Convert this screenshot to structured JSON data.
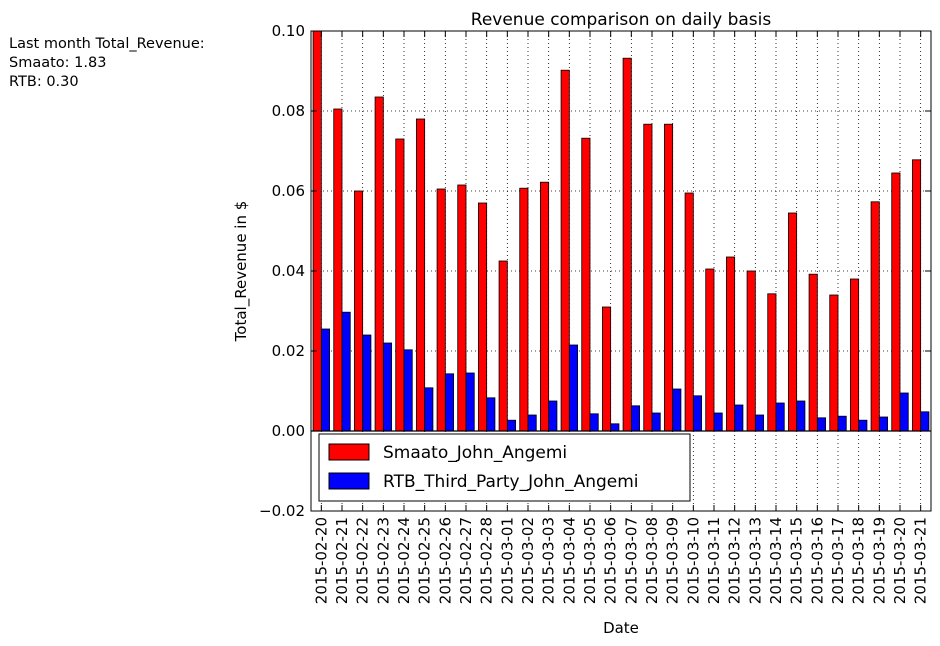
{
  "summary": {
    "heading": "Last month Total_Revenue:",
    "smaato_line": "Smaato: 1.83",
    "rtb_line": "RTB: 0.30"
  },
  "chart_data": {
    "type": "bar",
    "title": "Revenue comparison on daily basis",
    "xlabel": "Date",
    "ylabel": "Total_Revenue in $",
    "ylim": [
      -0.02,
      0.1
    ],
    "yticks": [
      -0.02,
      0.0,
      0.02,
      0.04,
      0.06,
      0.08,
      0.1
    ],
    "ytick_labels": [
      "−0.02",
      "0.00",
      "0.02",
      "0.04",
      "0.06",
      "0.08",
      "0.10"
    ],
    "grid": true,
    "legend_position": "lower-left",
    "categories": [
      "2015-02-20",
      "2015-02-21",
      "2015-02-22",
      "2015-02-23",
      "2015-02-24",
      "2015-02-25",
      "2015-02-26",
      "2015-02-27",
      "2015-02-28",
      "2015-03-01",
      "2015-03-02",
      "2015-03-03",
      "2015-03-04",
      "2015-03-05",
      "2015-03-06",
      "2015-03-07",
      "2015-03-08",
      "2015-03-09",
      "2015-03-10",
      "2015-03-11",
      "2015-03-12",
      "2015-03-13",
      "2015-03-14",
      "2015-03-15",
      "2015-03-16",
      "2015-03-17",
      "2015-03-18",
      "2015-03-19",
      "2015-03-20",
      "2015-03-21"
    ],
    "series": [
      {
        "name": "Smaato_John_Angemi",
        "color": "#ff0000",
        "values": [
          0.1,
          0.0805,
          0.06,
          0.0835,
          0.073,
          0.078,
          0.0605,
          0.0615,
          0.057,
          0.0425,
          0.0607,
          0.0622,
          0.0902,
          0.0732,
          0.031,
          0.0932,
          0.0767,
          0.0767,
          0.0595,
          0.0405,
          0.0435,
          0.04,
          0.0343,
          0.0545,
          0.0392,
          0.034,
          0.038,
          0.0573,
          0.0645,
          0.0678
        ]
      },
      {
        "name": "RTB_Third_Party_John_Angemi",
        "color": "#0000ff",
        "values": [
          0.0255,
          0.0297,
          0.024,
          0.022,
          0.0203,
          0.0108,
          0.0143,
          0.0145,
          0.0083,
          0.0027,
          0.004,
          0.0075,
          0.0215,
          0.0043,
          0.0018,
          0.0063,
          0.0045,
          0.0105,
          0.0088,
          0.0045,
          0.0065,
          0.004,
          0.007,
          0.0075,
          0.0033,
          0.0037,
          0.0027,
          0.0035,
          0.0095,
          0.0048
        ]
      }
    ]
  }
}
